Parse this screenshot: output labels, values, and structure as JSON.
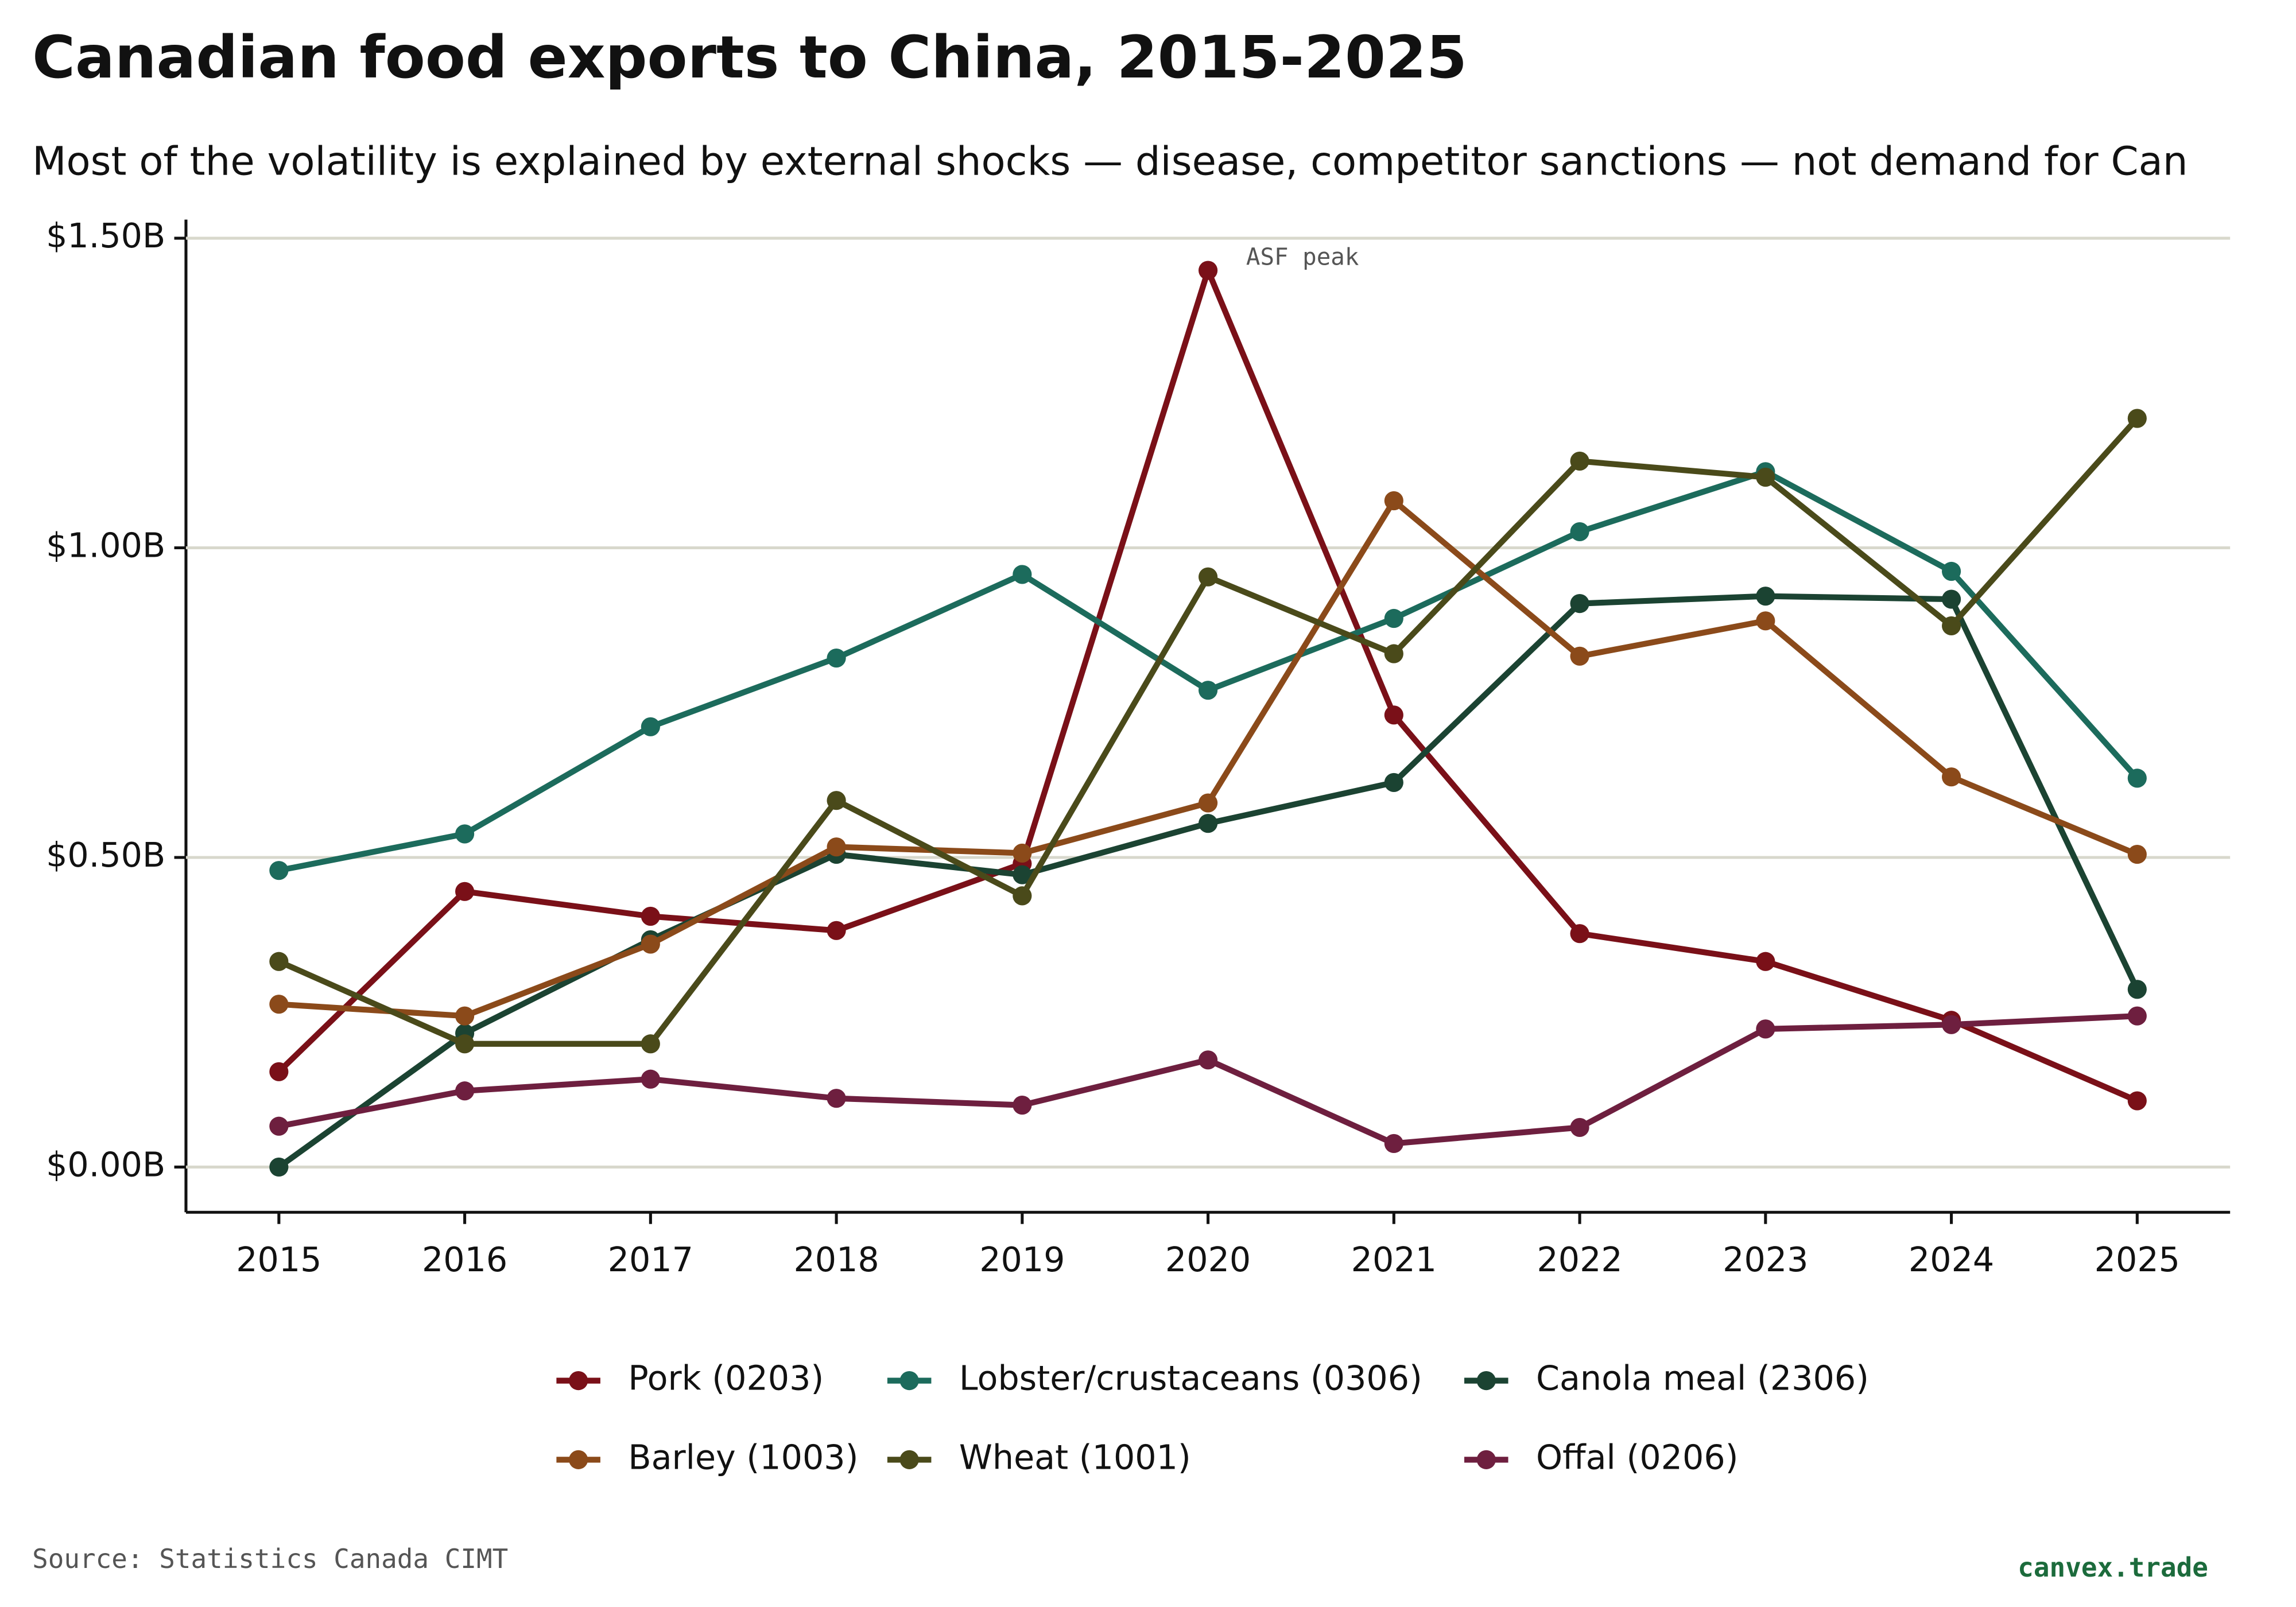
{
  "chart_data": {
    "type": "line",
    "title": "Canadian food exports to China, 2015-2025",
    "subtitle": "Most of the volatility is explained by external shocks — disease, competitor sanctions — not demand for Can",
    "x": [
      2015,
      2016,
      2017,
      2018,
      2019,
      2020,
      2021,
      2022,
      2023,
      2024,
      2025
    ],
    "xlim": [
      2014.5,
      2025.5
    ],
    "xticks": [
      2015,
      2016,
      2017,
      2018,
      2019,
      2020,
      2021,
      2022,
      2023,
      2024,
      2025
    ],
    "ylim": [
      -0.073,
      1.53
    ],
    "yticks": [
      {
        "value": 0,
        "label": "$0.00B"
      },
      {
        "value": 0.5,
        "label": "$0.50B"
      },
      {
        "value": 1,
        "label": "$1.00B"
      },
      {
        "value": 1.5,
        "label": "$1.50B"
      }
    ],
    "grid": true,
    "series": [
      {
        "name": "Pork (0203)",
        "color": "#7a1018",
        "values": [
          0.154,
          0.445,
          0.405,
          0.382,
          0.49,
          1.448,
          0.73,
          0.377,
          0.332,
          0.237,
          0.107
        ]
      },
      {
        "name": "Lobster/crustaceans (0306)",
        "color": "#1c6b5c",
        "values": [
          0.479,
          0.538,
          0.711,
          0.822,
          0.957,
          0.77,
          0.886,
          1.026,
          1.123,
          0.962,
          0.628
        ]
      },
      {
        "name": "Canola meal (2306)",
        "color": "#1b4332",
        "values": [
          0,
          0.216,
          0.367,
          0.505,
          0.472,
          0.555,
          0.621,
          0.91,
          0.922,
          0.917,
          0.287
        ]
      },
      {
        "name": "Barley (1003)",
        "color": "#8b4a1a",
        "values": [
          0.263,
          0.244,
          0.36,
          0.517,
          0.507,
          0.588,
          1.076,
          0.825,
          0.882,
          0.63,
          0.505
        ]
      },
      {
        "name": "Wheat (1001)",
        "color": "#4a4a1a",
        "values": [
          0.332,
          0.199,
          0.199,
          0.592,
          0.438,
          0.953,
          0.829,
          1.14,
          1.114,
          0.874,
          1.209
        ]
      },
      {
        "name": "Offal (0206)",
        "color": "#6e1f3f",
        "values": [
          0.066,
          0.123,
          0.142,
          0.111,
          0.1,
          0.173,
          0.038,
          0.064,
          0.223,
          0.23,
          0.244
        ]
      }
    ],
    "annotations": [
      {
        "text": "ASF peak",
        "x": 2020
      }
    ],
    "source": "Source: Statistics Canada CIMT",
    "brand": "canvex.trade"
  }
}
